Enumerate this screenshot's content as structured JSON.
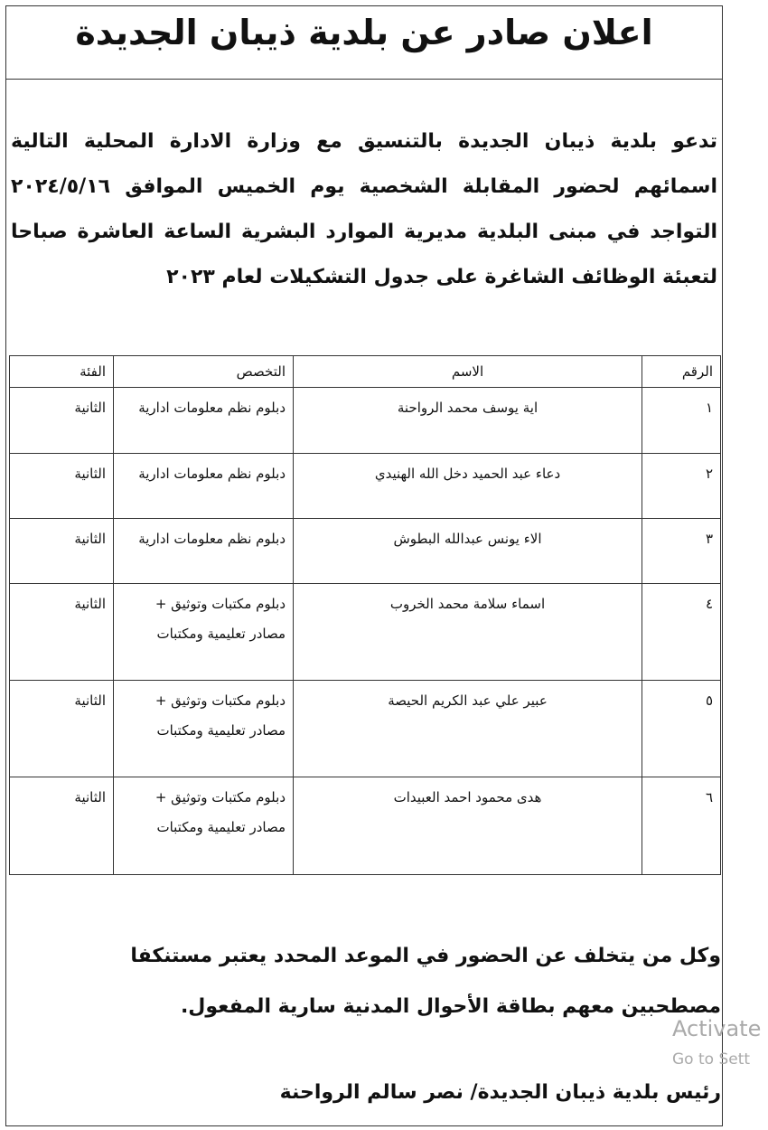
{
  "header": {
    "title": "اعلان صادر عن بلدية ذيبان الجديدة"
  },
  "intro": {
    "lines": [
      "تدعو بلدية ذيبان الجديدة بالتنسيق مع وزارة الادارة المحلية التالية",
      "اسمائهم لحضور المقابلة الشخصية يوم الخميس الموافق ٢٠٢٤/٥/١٦",
      "التواجد في مبنى البلدية مديرية الموارد البشرية الساعة العاشرة صباحا",
      "لتعبئة الوظائف الشاغرة على جدول التشكيلات لعام ٢٠٢٣"
    ]
  },
  "table": {
    "columns": [
      "الرقم",
      "الاسم",
      "التخصص",
      "الفئة"
    ],
    "rows": [
      [
        "١",
        "اية يوسف محمد الرواحنة",
        "دبلوم نظم معلومات ادارية",
        "الثانية"
      ],
      [
        "٢",
        "دعاء عبد الحميد دخل الله الهنيدي",
        "دبلوم نظم معلومات ادارية",
        "الثانية"
      ],
      [
        "٣",
        "الاء يونس عبدالله البطوش",
        "دبلوم نظم معلومات ادارية",
        "الثانية"
      ],
      [
        "٤",
        "اسماء سلامة محمد الخروب",
        "دبلوم مكتبات وتوثيق + مصادر تعليمية ومكتبات",
        "الثانية"
      ],
      [
        "٥",
        "عبير علي عبد الكريم الحيصة",
        "دبلوم مكتبات وتوثيق + مصادر تعليمية ومكتبات",
        "الثانية"
      ],
      [
        "٦",
        "هدى محمود احمد العبيدات",
        "دبلوم مكتبات وتوثيق + مصادر تعليمية ومكتبات",
        "الثانية"
      ]
    ]
  },
  "footer": {
    "lines": [
      "وكل من يتخلف عن الحضور في الموعد المحدد يعتبر مستنكفا",
      "مصطحبين معهم بطاقة الأحوال المدنية سارية المفعول."
    ],
    "signature": "رئيس بلدية ذيبان الجديدة/ نصر سالم الرواحنة"
  },
  "watermark": {
    "line1": "Activate",
    "line2": "Go to Sett"
  }
}
